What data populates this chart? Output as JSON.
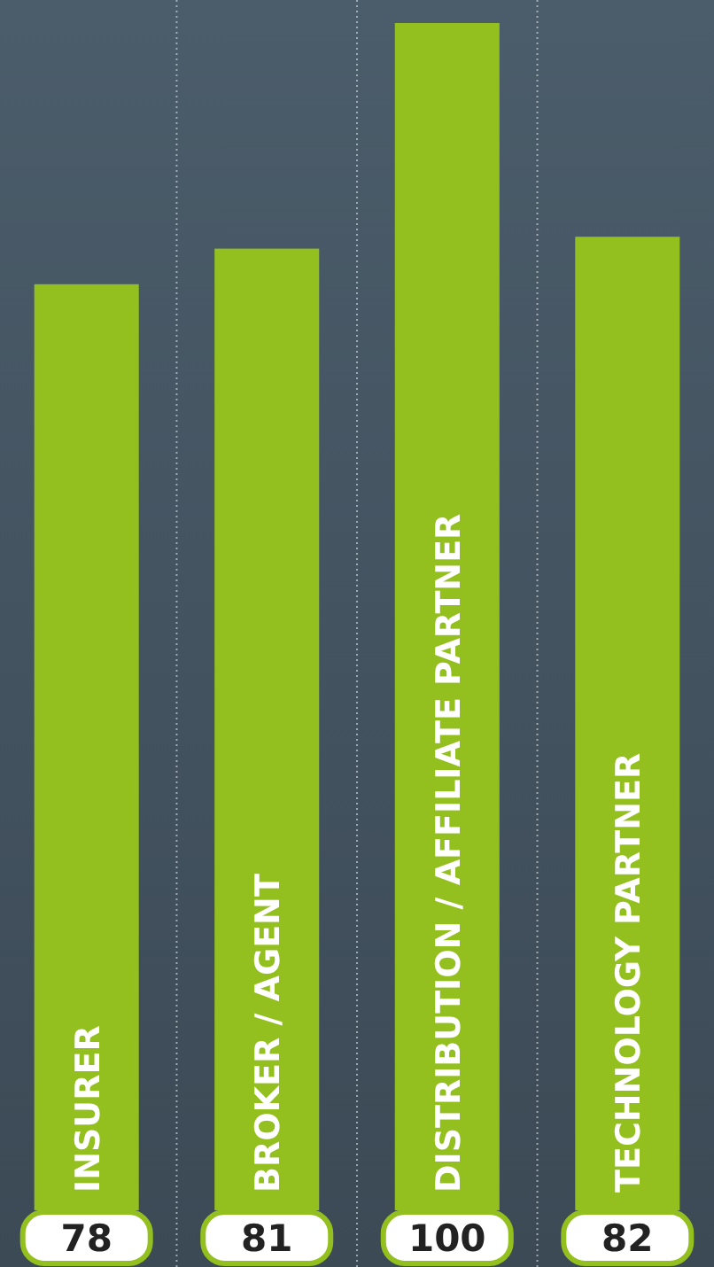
{
  "chart_data": {
    "type": "bar",
    "categories": [
      "INSURER",
      "BROKER / AGENT",
      "DISTRIBUTION / AFFILIATE PARTNER",
      "TECHNOLOGY PARTNER"
    ],
    "values": [
      78,
      81,
      100,
      82
    ],
    "color": "#93c01f",
    "data_labels": true
  }
}
